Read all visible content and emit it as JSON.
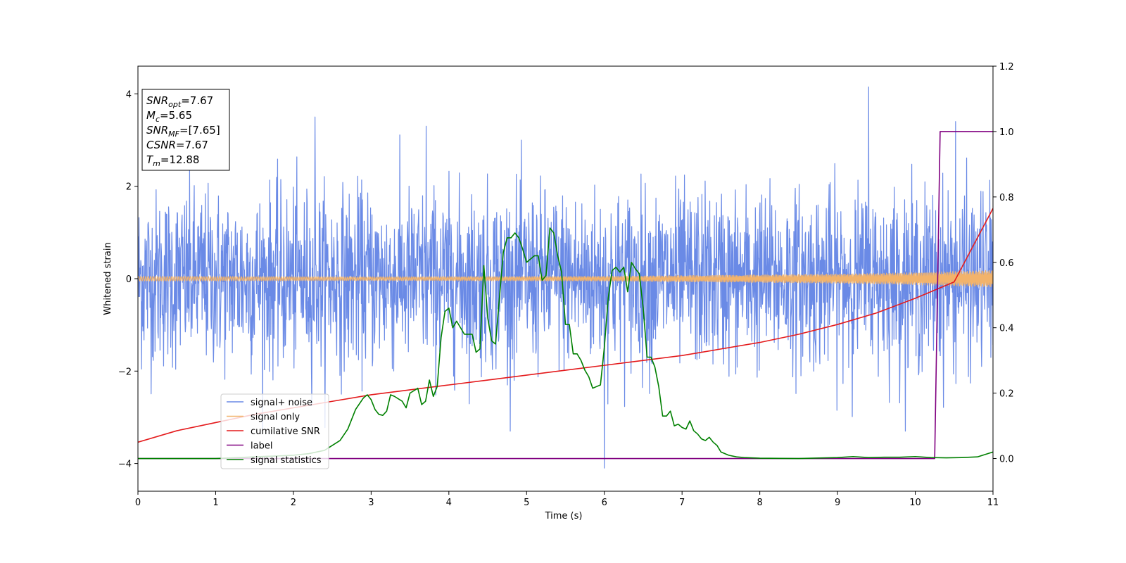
{
  "chart_data": {
    "type": "line",
    "xlabel": "Time (s)",
    "ylabel": "Whitened strain",
    "xlim": [
      0,
      11
    ],
    "ylim": [
      -4.6,
      4.6
    ],
    "y2lim": [
      -0.1,
      1.2
    ],
    "grid": false,
    "legend_position": "lower-left",
    "x_ticks": [
      0,
      1,
      2,
      3,
      4,
      5,
      6,
      7,
      8,
      9,
      10,
      11
    ],
    "x_tick_labels": [
      "0",
      "1",
      "2",
      "3",
      "4",
      "5",
      "6",
      "7",
      "8",
      "9",
      "10",
      "11"
    ],
    "y_ticks": [
      -4,
      -2,
      0,
      2,
      4
    ],
    "y_tick_labels": [
      "−4",
      "−2",
      "0",
      "2",
      "4"
    ],
    "y2_ticks": [
      0.0,
      0.2,
      0.4,
      0.6,
      0.8,
      1.0,
      1.2
    ],
    "y2_tick_labels": [
      "0.0",
      "0.2",
      "0.4",
      "0.6",
      "0.8",
      "1.0",
      "1.2"
    ],
    "info_box": [
      {
        "main": "SNR",
        "sub": "opt",
        "value": "=7.67"
      },
      {
        "main": "M",
        "sub": "c",
        "value": "=5.65"
      },
      {
        "main": "SNR",
        "sub": "MF",
        "value": "=[7.65]"
      },
      {
        "main": "CSNR",
        "sub": "",
        "value": "=7.67"
      },
      {
        "main": "T",
        "sub": "m",
        "value": "=12.88"
      }
    ],
    "series": [
      {
        "name": "signal+ noise",
        "axis": "left",
        "color": "#6a8ae6",
        "kind": "noise",
        "amplitude_sd": 0.95,
        "peaks": [
          [
            9.4,
            4.15
          ],
          [
            10.52,
            3.4
          ],
          [
            6.0,
            -4.1
          ],
          [
            2.28,
            3.5
          ],
          [
            3.71,
            3.3
          ]
        ]
      },
      {
        "name": "signal only",
        "axis": "left",
        "color": "#f2b36b",
        "kind": "chirp",
        "envelope": [
          [
            0,
            0.05
          ],
          [
            3,
            0.04
          ],
          [
            6,
            0.05
          ],
          [
            8,
            0.08
          ],
          [
            9,
            0.1
          ],
          [
            10,
            0.13
          ],
          [
            11,
            0.18
          ]
        ]
      },
      {
        "name": "cumilative SNR",
        "axis": "right",
        "color": "#e41a1c",
        "x": [
          0,
          0.5,
          1,
          1.5,
          2,
          2.5,
          3,
          3.5,
          4,
          4.5,
          5,
          5.5,
          6,
          6.5,
          7,
          7.5,
          8,
          8.5,
          9,
          9.5,
          10,
          10.5,
          11
        ],
        "y": [
          0.05,
          0.085,
          0.11,
          0.135,
          0.155,
          0.175,
          0.195,
          0.21,
          0.225,
          0.24,
          0.255,
          0.27,
          0.285,
          0.3,
          0.315,
          0.335,
          0.355,
          0.38,
          0.41,
          0.445,
          0.49,
          0.54,
          0.765
        ]
      },
      {
        "name": "label",
        "axis": "right",
        "color": "#800080",
        "x": [
          0,
          10.25,
          10.32,
          11
        ],
        "y": [
          0.0,
          0.0,
          1.0,
          1.0
        ]
      },
      {
        "name": "signal statistics",
        "axis": "right",
        "color": "#008000",
        "x": [
          0,
          0.5,
          1,
          1.5,
          2,
          2.2,
          2.4,
          2.6,
          2.7,
          2.8,
          2.9,
          2.95,
          3.0,
          3.05,
          3.1,
          3.15,
          3.2,
          3.25,
          3.3,
          3.4,
          3.45,
          3.5,
          3.6,
          3.65,
          3.7,
          3.75,
          3.8,
          3.85,
          3.9,
          3.95,
          4.0,
          4.05,
          4.1,
          4.2,
          4.3,
          4.35,
          4.4,
          4.45,
          4.5,
          4.55,
          4.6,
          4.7,
          4.75,
          4.8,
          4.85,
          4.9,
          4.95,
          5.0,
          5.05,
          5.1,
          5.15,
          5.2,
          5.25,
          5.3,
          5.35,
          5.4,
          5.45,
          5.5,
          5.55,
          5.6,
          5.65,
          5.7,
          5.75,
          5.8,
          5.85,
          5.9,
          5.95,
          6.0,
          6.05,
          6.1,
          6.15,
          6.2,
          6.25,
          6.3,
          6.35,
          6.4,
          6.45,
          6.5,
          6.55,
          6.6,
          6.65,
          6.7,
          6.75,
          6.8,
          6.85,
          6.9,
          6.95,
          7.0,
          7.05,
          7.1,
          7.15,
          7.2,
          7.25,
          7.3,
          7.35,
          7.4,
          7.45,
          7.5,
          7.6,
          7.7,
          7.8,
          8.0,
          8.5,
          9.0,
          9.2,
          9.4,
          9.6,
          9.8,
          10.0,
          10.2,
          10.4,
          10.6,
          10.8,
          11.0
        ],
        "y": [
          0.0,
          0.0,
          0.0,
          0.005,
          0.01,
          0.015,
          0.025,
          0.055,
          0.09,
          0.15,
          0.185,
          0.195,
          0.18,
          0.15,
          0.135,
          0.132,
          0.145,
          0.195,
          0.19,
          0.175,
          0.155,
          0.2,
          0.215,
          0.165,
          0.175,
          0.24,
          0.19,
          0.22,
          0.37,
          0.45,
          0.46,
          0.4,
          0.42,
          0.38,
          0.38,
          0.325,
          0.335,
          0.59,
          0.43,
          0.36,
          0.35,
          0.63,
          0.675,
          0.675,
          0.69,
          0.675,
          0.64,
          0.6,
          0.61,
          0.62,
          0.62,
          0.545,
          0.56,
          0.705,
          0.69,
          0.62,
          0.57,
          0.41,
          0.41,
          0.32,
          0.32,
          0.3,
          0.27,
          0.25,
          0.215,
          0.22,
          0.225,
          0.34,
          0.49,
          0.575,
          0.585,
          0.57,
          0.585,
          0.51,
          0.6,
          0.58,
          0.565,
          0.46,
          0.31,
          0.31,
          0.28,
          0.22,
          0.13,
          0.13,
          0.145,
          0.1,
          0.105,
          0.095,
          0.09,
          0.115,
          0.085,
          0.075,
          0.06,
          0.055,
          0.065,
          0.05,
          0.04,
          0.02,
          0.01,
          0.005,
          0.003,
          0.001,
          0.0,
          0.003,
          0.006,
          0.003,
          0.004,
          0.004,
          0.006,
          0.003,
          0.002,
          0.003,
          0.005,
          0.02
        ]
      }
    ]
  }
}
